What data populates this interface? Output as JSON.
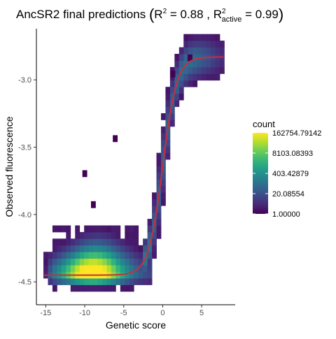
{
  "chart_data": {
    "type": "heatmap",
    "title": {
      "main": "AncSR2 final predictions",
      "r2_symbol": "R",
      "r2_exp": "2",
      "r2_value": " = 0.88 , ",
      "r2a_symbol": "R",
      "r2a_exp": "2",
      "r2a_sub": "active",
      "r2a_value": " = 0.99"
    },
    "xlabel": "Genetic score",
    "ylabel": "Observed fluorescence",
    "xlim": [
      -16.2,
      9.3
    ],
    "ylim": [
      -4.67,
      -2.62
    ],
    "x_ticks": [
      {
        "value": -15,
        "label": "-15"
      },
      {
        "value": -10,
        "label": "-10"
      },
      {
        "value": -5,
        "label": "-5"
      },
      {
        "value": 0,
        "label": "0"
      },
      {
        "value": 5,
        "label": "5"
      }
    ],
    "y_ticks": [
      {
        "value": -3.0,
        "label": "-3.0"
      },
      {
        "value": -3.5,
        "label": "-3.5"
      },
      {
        "value": -4.0,
        "label": "-4.0"
      },
      {
        "value": -4.5,
        "label": "-4.5"
      }
    ],
    "bin_width_x": 0.58,
    "bin_width_y": 0.049,
    "legend": {
      "title": "count",
      "scale": "log",
      "min": 1.0,
      "max": 162754.79142,
      "labels": [
        {
          "value": 162754.79142,
          "label": "162754.79142"
        },
        {
          "value": 8103.08393,
          "label": "8103.08393"
        },
        {
          "value": 403.42879,
          "label": "403.42879"
        },
        {
          "value": 20.08554,
          "label": "20.08554"
        },
        {
          "value": 1.0,
          "label": "1.00000"
        }
      ],
      "placement": "right"
    },
    "colors": {
      "viridis": [
        "#440154",
        "#482878",
        "#3e4a89",
        "#31688e",
        "#26828e",
        "#1f9e89",
        "#35b779",
        "#6ece58",
        "#b5de2b",
        "#fde725"
      ],
      "fit_line": "#cb2d3e"
    },
    "fit_curve": {
      "form": "logistic",
      "lower": -4.45,
      "upper": -2.83,
      "midpoint": 0.0,
      "slope": 1.1,
      "x_range": [
        -15.2,
        7.8
      ]
    }
  }
}
